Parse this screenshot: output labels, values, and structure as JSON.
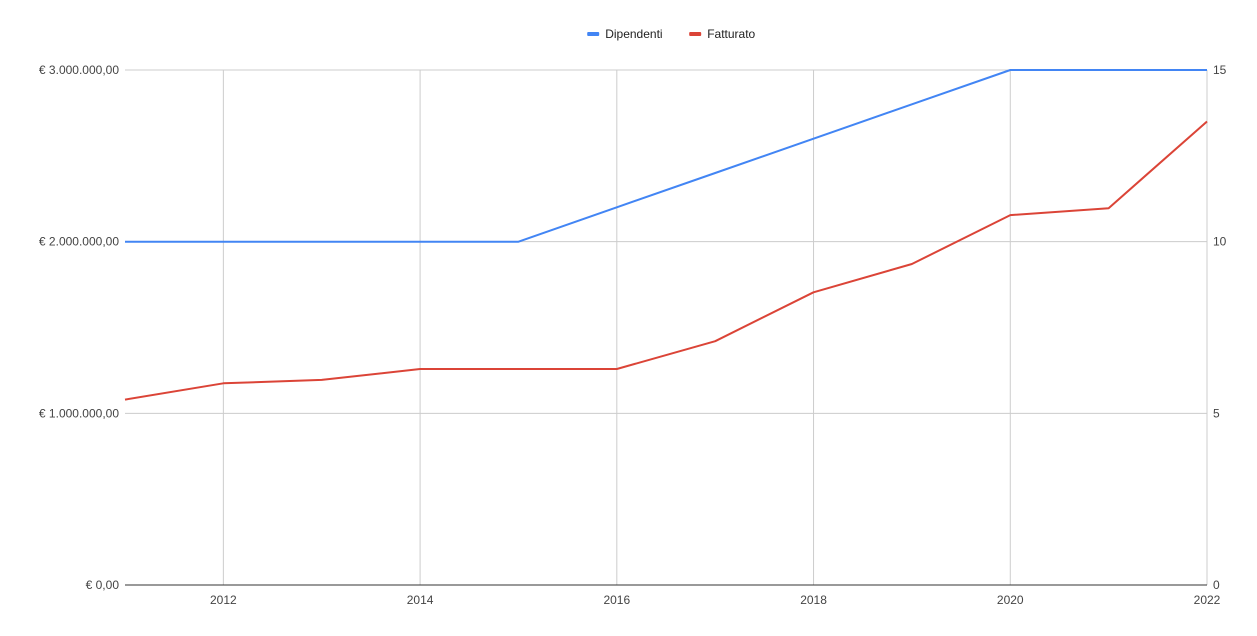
{
  "chart_data": {
    "type": "line",
    "title": "",
    "xlabel": "",
    "ylabel": "",
    "legend_position": "top",
    "grid": true,
    "x": [
      2011,
      2012,
      2013,
      2014,
      2015,
      2016,
      2017,
      2018,
      2019,
      2020,
      2021,
      2022
    ],
    "x_ticks": [
      2012,
      2014,
      2016,
      2018,
      2020,
      2022
    ],
    "x_range": [
      2011,
      2022
    ],
    "y_left": {
      "range": [
        0,
        3000000
      ],
      "ticks": [
        0,
        1000000,
        2000000,
        3000000
      ],
      "tick_labels": [
        "€ 0,00",
        "€ 1.000.000,00",
        "€ 2.000.000,00",
        "€ 3.000.000,00"
      ]
    },
    "y_right": {
      "range": [
        0,
        15
      ],
      "ticks": [
        0,
        5,
        10,
        15
      ],
      "tick_labels": [
        "0",
        "5",
        "10",
        "15"
      ]
    },
    "series": [
      {
        "name": "Dipendenti",
        "axis": "right",
        "color": "#4285F4",
        "values": [
          10,
          10,
          10,
          10,
          10,
          11,
          12,
          13,
          14,
          15,
          15,
          15
        ]
      },
      {
        "name": "Fatturato",
        "axis": "left",
        "color": "#DB4437",
        "values": [
          1080000,
          1175000,
          1195000,
          1258000,
          1258000,
          1258000,
          1420000,
          1705000,
          1870000,
          2155000,
          2195000,
          2700000
        ]
      }
    ]
  }
}
